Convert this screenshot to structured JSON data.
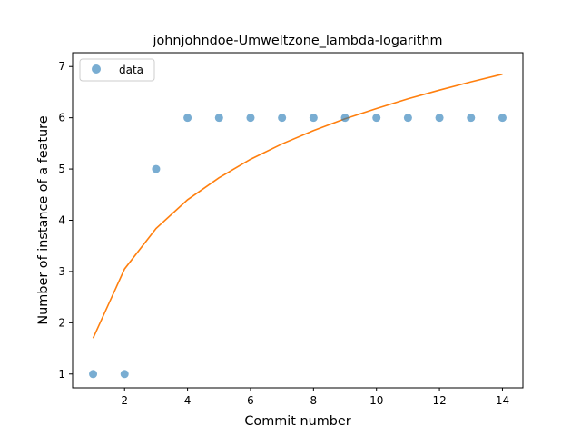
{
  "chart_data": {
    "type": "scatter",
    "title": "johnjohndoe-Umweltzone_lambda-logarithm",
    "xlabel": "Commit number",
    "ylabel": "Number of instance of a feature",
    "xlim": [
      0.35,
      14.65
    ],
    "ylim": [
      0.73,
      7.27
    ],
    "xticks": [
      2,
      4,
      6,
      8,
      10,
      12,
      14
    ],
    "yticks": [
      1,
      2,
      3,
      4,
      5,
      6,
      7
    ],
    "legend": {
      "placement": "top-left",
      "entries": [
        "data"
      ]
    },
    "grid": false,
    "series": [
      {
        "name": "data",
        "kind": "scatter",
        "color": "#1f77b4",
        "x": [
          1,
          2,
          3,
          4,
          5,
          6,
          7,
          8,
          9,
          10,
          11,
          12,
          13,
          14
        ],
        "y": [
          1,
          1,
          5,
          6,
          6,
          6,
          6,
          6,
          6,
          6,
          6,
          6,
          6,
          6
        ]
      },
      {
        "kind": "line",
        "color": "#ff7f0e",
        "x": [
          1,
          2,
          3,
          4,
          5,
          6,
          7,
          8,
          9,
          10,
          11,
          12,
          13,
          14
        ],
        "y": [
          1.7,
          3.05,
          3.84,
          4.4,
          4.83,
          5.19,
          5.49,
          5.75,
          5.98,
          6.18,
          6.37,
          6.54,
          6.7,
          6.85
        ]
      }
    ]
  }
}
